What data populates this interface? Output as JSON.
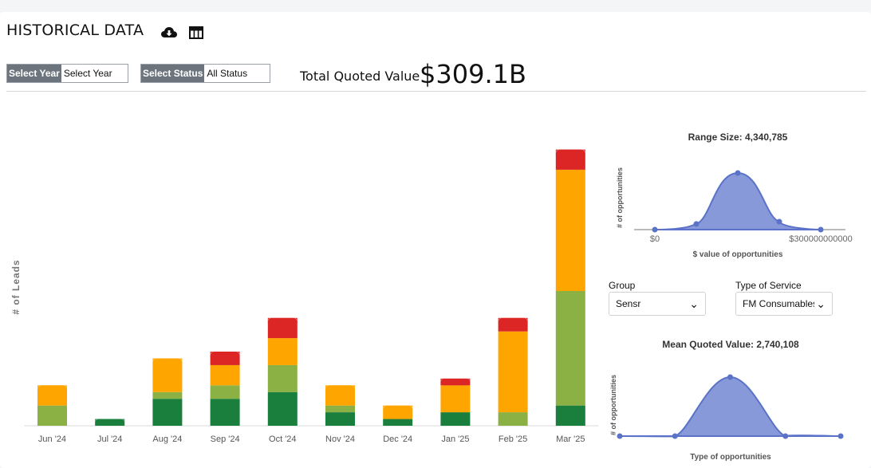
{
  "header": {
    "title": "HISTORICAL DATA",
    "download_icon": "cloud-download-icon",
    "table_icon": "table-icon"
  },
  "filters": {
    "year_label": "Select Year",
    "year_value": "Select Year",
    "status_label": "Select Status",
    "status_value": "All Status"
  },
  "total": {
    "label": "Total Quoted Value",
    "value": "$309.1B"
  },
  "colors": {
    "dark_green": "#1a7f3c",
    "light_green": "#8bb044",
    "orange": "#ffa500",
    "red": "#dc2626",
    "distribution": "#8899d9",
    "distribution_line": "#5a72c8"
  },
  "chart_data": [
    {
      "type": "bar",
      "stacked": true,
      "ylabel": "# of Leads",
      "xlabel": "",
      "categories": [
        "Jun '24",
        "Jul '24",
        "Aug '24",
        "Sep '24",
        "Oct '24",
        "Nov '24",
        "Dec '24",
        "Jan '25",
        "Feb '25",
        "Mar '25"
      ],
      "series": [
        {
          "color": "#1a7f3c",
          "values": [
            0,
            1,
            4,
            4,
            5,
            2,
            1,
            2,
            0,
            3
          ]
        },
        {
          "color": "#8bb044",
          "values": [
            3,
            0,
            1,
            2,
            4,
            1,
            0,
            0,
            2,
            17
          ]
        },
        {
          "color": "#ffa500",
          "values": [
            3,
            0,
            5,
            3,
            4,
            3,
            2,
            4,
            12,
            18
          ]
        },
        {
          "color": "#dc2626",
          "values": [
            0,
            0,
            0,
            2,
            3,
            0,
            0,
            1,
            2,
            3
          ]
        }
      ],
      "grid": false
    },
    {
      "type": "area",
      "title": "Range Size: 4,340,785",
      "xlabel": "$ value of opportunities",
      "ylabel": "# of opportunities",
      "x_ticks": [
        "$0",
        "$300000000000"
      ],
      "xlim": [
        0,
        6
      ],
      "ylim": [
        0,
        1
      ],
      "points": [
        [
          0,
          0
        ],
        [
          1,
          0.1
        ],
        [
          2,
          1.0
        ],
        [
          3,
          0.14
        ],
        [
          4,
          0
        ]
      ]
    },
    {
      "type": "area",
      "title": "Mean Quoted Value: 2,740,108",
      "xlabel": "Type of opportunities",
      "ylabel": "# of opportunities",
      "xlim": [
        0,
        4
      ],
      "ylim": [
        0,
        1
      ],
      "points": [
        [
          0,
          0
        ],
        [
          1,
          0
        ],
        [
          2,
          1.0
        ],
        [
          3,
          0
        ],
        [
          4,
          0
        ]
      ]
    }
  ],
  "controls": {
    "group_label": "Group",
    "group_value": "Sensr",
    "service_label": "Type of Service",
    "service_value": "FM Consumables"
  }
}
